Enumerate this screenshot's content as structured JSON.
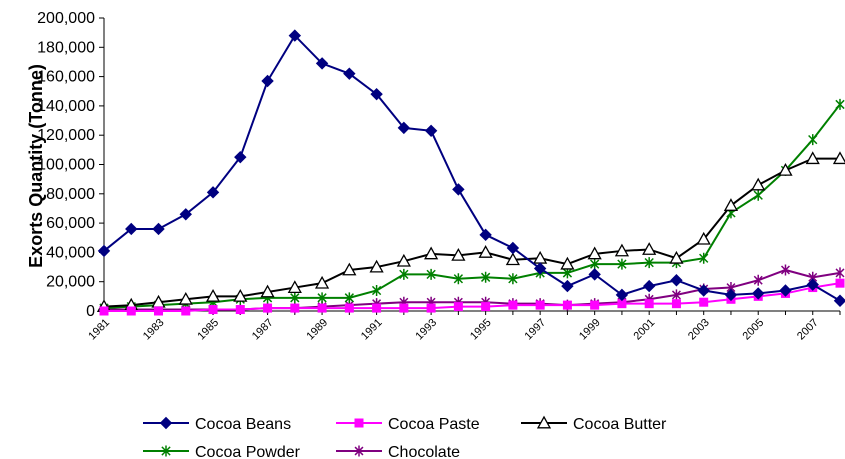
{
  "chart_data": {
    "type": "line",
    "title": "",
    "xlabel": "",
    "ylabel": "Exorts Quantity (Tonne)",
    "ylim": [
      0,
      200000
    ],
    "y_ticks": [
      0,
      20000,
      40000,
      60000,
      80000,
      100000,
      120000,
      140000,
      160000,
      180000,
      200000
    ],
    "y_tick_labels": [
      "0",
      "20,000",
      "40,000",
      "60,000",
      "80,000",
      "100,000",
      "120,000",
      "140,000",
      "160,000",
      "180,000",
      "200,000"
    ],
    "x": [
      1981,
      1982,
      1983,
      1984,
      1985,
      1986,
      1987,
      1988,
      1989,
      1990,
      1991,
      1992,
      1993,
      1994,
      1995,
      1996,
      1997,
      1998,
      1999,
      2000,
      2001,
      2002,
      2003,
      2004,
      2005,
      2006,
      2007,
      2008
    ],
    "x_tick_labels": [
      "1981",
      "1983",
      "1985",
      "1987",
      "1989",
      "1991",
      "1993",
      "1995",
      "1997",
      "1999",
      "2001",
      "2003",
      "2005",
      "2007"
    ],
    "series": [
      {
        "name": "Cocoa Beans",
        "color": "#000080",
        "marker": "diamond",
        "values": [
          41000,
          56000,
          56000,
          66000,
          81000,
          105000,
          157000,
          188000,
          169000,
          162000,
          148000,
          125000,
          123000,
          83000,
          52000,
          43000,
          29000,
          17000,
          25000,
          11000,
          17000,
          21000,
          14000,
          11000,
          12000,
          14000,
          18000,
          7000
        ]
      },
      {
        "name": "Cocoa Paste",
        "color": "#FF00FF",
        "marker": "square",
        "values": [
          0,
          0,
          0,
          0,
          1000,
          1000,
          2000,
          2000,
          2000,
          2000,
          2000,
          2000,
          2000,
          3000,
          3000,
          4000,
          4000,
          4000,
          4000,
          5000,
          5000,
          5000,
          6000,
          8000,
          10000,
          12000,
          16000,
          19000
        ]
      },
      {
        "name": "Cocoa Butter",
        "color": "#000000",
        "marker": "triangle",
        "values": [
          3000,
          4000,
          6000,
          8000,
          10000,
          10000,
          13000,
          16000,
          19000,
          28000,
          30000,
          34000,
          39000,
          38000,
          40000,
          35000,
          36000,
          32000,
          39000,
          41000,
          42000,
          36000,
          49000,
          72000,
          86000,
          96000,
          104000,
          104000
        ]
      },
      {
        "name": "Cocoa Powder",
        "color": "#008000",
        "marker": "asterisk",
        "values": [
          2000,
          3000,
          4000,
          5000,
          6000,
          8000,
          9000,
          9000,
          9000,
          9000,
          14000,
          25000,
          25000,
          22000,
          23000,
          22000,
          26000,
          26000,
          32000,
          32000,
          33000,
          33000,
          36000,
          67000,
          79000,
          96000,
          117000,
          141000
        ]
      },
      {
        "name": "Chocolate",
        "color": "#800080",
        "marker": "star",
        "values": [
          1000,
          1000,
          1000,
          1000,
          1000,
          1000,
          2000,
          2000,
          3000,
          4000,
          5000,
          6000,
          6000,
          6000,
          6000,
          5000,
          5000,
          4000,
          5000,
          6000,
          8000,
          11000,
          15000,
          16000,
          21000,
          28000,
          23000,
          26000
        ]
      }
    ],
    "legend": {
      "placement": "bottom"
    },
    "grid": false
  }
}
